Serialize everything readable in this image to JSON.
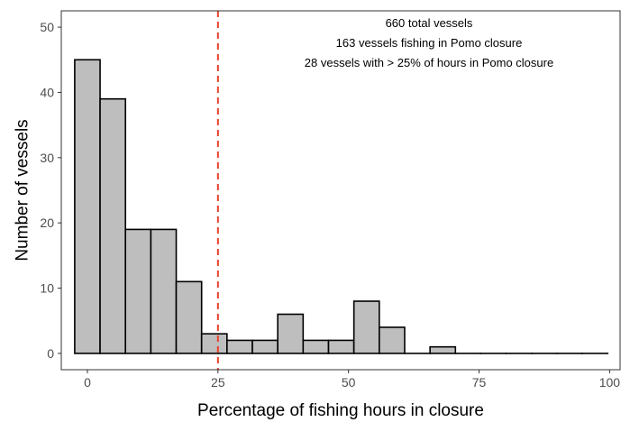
{
  "chart_data": {
    "type": "bar",
    "subtype": "histogram",
    "bin_width": 4.86,
    "bin_centers": [
      0,
      4.86,
      9.72,
      14.58,
      19.44,
      24.3,
      29.16,
      34.02,
      38.88,
      43.74,
      48.6,
      53.46,
      58.32,
      63.18,
      68.04,
      72.9,
      77.76,
      82.62,
      87.48,
      92.34,
      97.2
    ],
    "values": [
      45,
      39,
      19,
      19,
      11,
      3,
      2,
      2,
      6,
      2,
      2,
      8,
      4,
      0,
      1,
      0,
      0,
      0,
      0,
      0,
      0
    ],
    "xlabel": "Percentage of fishing hours in closure",
    "ylabel": "Number of vessels",
    "xlim": [
      -5,
      102
    ],
    "ylim": [
      -2.5,
      52.5
    ],
    "x_ticks": [
      0,
      25,
      50,
      75,
      100
    ],
    "y_ticks": [
      0,
      10,
      20,
      30,
      40,
      50
    ],
    "reference_line": {
      "x": 25,
      "style": "dashed",
      "color": "#e8412b"
    },
    "annotations": [
      "660 total vessels",
      "163 vessels fishing in Pomo closure",
      "28 vessels with > 25% of hours in Pomo closure"
    ],
    "grid": false,
    "colors": {
      "bar_fill": "#bebebe",
      "bar_stroke": "#000000"
    }
  }
}
